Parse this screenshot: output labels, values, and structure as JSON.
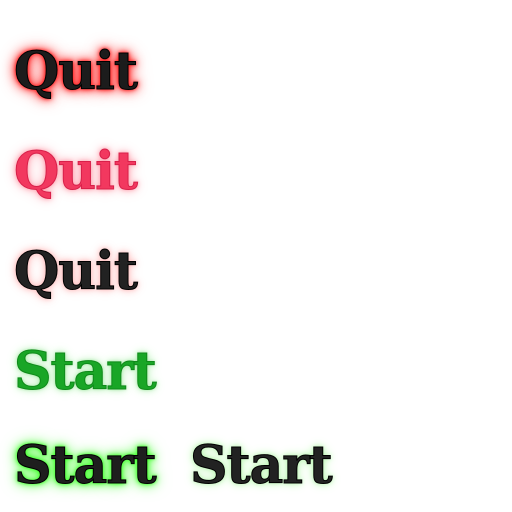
{
  "buttons": {
    "quit_hover": {
      "label": "Quit",
      "state": "hover",
      "fill_color": "#1c1c1c",
      "glow_color": "#ff2020"
    },
    "quit_pressed": {
      "label": "Quit",
      "state": "pressed",
      "fill_color": "#f2385f",
      "glow_color": "#ffb0bc"
    },
    "quit_normal": {
      "label": "Quit",
      "state": "normal",
      "fill_color": "#222222",
      "glow_color": "#ffc8c8"
    },
    "start_pressed": {
      "label": "Start",
      "state": "pressed",
      "fill_color": "#19a626",
      "glow_color": "#b8f0b8"
    },
    "start_hover": {
      "label": "Start",
      "state": "hover",
      "fill_color": "#1e1e1e",
      "glow_color": "#45ff30"
    },
    "start_normal": {
      "label": "Start",
      "state": "normal",
      "fill_color": "#222222",
      "glow_color": "#c8f8c0"
    }
  }
}
